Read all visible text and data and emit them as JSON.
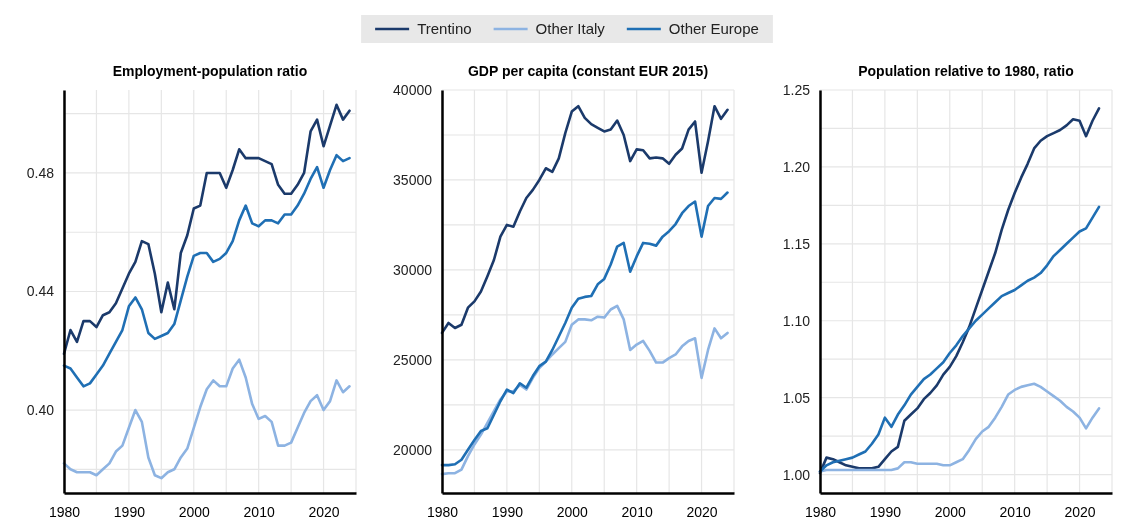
{
  "chart_data": [
    {
      "type": "line",
      "title": "Employment-population ratio",
      "legend": "top",
      "grid": true,
      "x": [
        1980,
        1981,
        1982,
        1983,
        1984,
        1985,
        1986,
        1987,
        1988,
        1989,
        1990,
        1991,
        1992,
        1993,
        1994,
        1995,
        1996,
        1997,
        1998,
        1999,
        2000,
        2001,
        2002,
        2003,
        2004,
        2005,
        2006,
        2007,
        2008,
        2009,
        2010,
        2011,
        2012,
        2013,
        2014,
        2015,
        2016,
        2017,
        2018,
        2019,
        2020,
        2021,
        2022,
        2023,
        2024
      ],
      "xlim": [
        1980,
        2025
      ],
      "xticks": [
        1980,
        {
          "value": 1985,
          "label": null
        },
        1990,
        {
          "value": 1995,
          "label": null
        },
        2000,
        {
          "value": 2005,
          "label": null
        },
        2010,
        {
          "value": 2015,
          "label": null
        },
        2020,
        {
          "value": 2025,
          "label": null
        }
      ],
      "ylim": [
        0.372,
        0.508
      ],
      "yticks": [
        {
          "value": 0.38,
          "label": null
        },
        {
          "value": 0.4,
          "label": "0.40"
        },
        {
          "value": 0.42,
          "label": null
        },
        {
          "value": 0.44,
          "label": "0.44"
        },
        {
          "value": 0.46,
          "label": null
        },
        {
          "value": 0.48,
          "label": "0.48"
        },
        {
          "value": 0.5,
          "label": null
        }
      ],
      "series": [
        {
          "name": "Trentino",
          "color": "#1b3a6b",
          "values": [
            0.419,
            0.427,
            0.423,
            0.43,
            0.43,
            0.428,
            0.432,
            0.433,
            0.436,
            0.441,
            0.446,
            0.45,
            0.457,
            0.456,
            0.446,
            0.433,
            0.443,
            0.434,
            0.453,
            0.459,
            0.468,
            0.469,
            0.48,
            0.48,
            0.48,
            0.475,
            0.481,
            0.488,
            0.485,
            0.485,
            0.485,
            0.484,
            0.483,
            0.476,
            0.473,
            0.473,
            0.476,
            0.48,
            0.494,
            0.498,
            0.489,
            0.496,
            0.503,
            0.498,
            0.501
          ]
        },
        {
          "name": "Other Italy",
          "color": "#8db3e2",
          "values": [
            0.382,
            0.38,
            0.379,
            0.379,
            0.379,
            0.378,
            0.38,
            0.382,
            0.386,
            0.388,
            0.394,
            0.4,
            0.396,
            0.384,
            0.378,
            0.377,
            0.379,
            0.38,
            0.384,
            0.387,
            0.394,
            0.401,
            0.407,
            0.41,
            0.408,
            0.408,
            0.414,
            0.417,
            0.411,
            0.402,
            0.397,
            0.398,
            0.396,
            0.388,
            0.388,
            0.389,
            0.394,
            0.399,
            0.403,
            0.405,
            0.4,
            0.403,
            0.41,
            0.406,
            0.408
          ]
        },
        {
          "name": "Other Europe",
          "color": "#1f6fb4",
          "values": [
            0.415,
            0.414,
            0.411,
            0.408,
            0.409,
            0.412,
            0.415,
            0.419,
            0.423,
            0.427,
            0.435,
            0.438,
            0.434,
            0.426,
            0.424,
            0.425,
            0.426,
            0.429,
            0.437,
            0.445,
            0.452,
            0.453,
            0.453,
            0.45,
            0.451,
            0.453,
            0.457,
            0.464,
            0.469,
            0.463,
            0.462,
            0.464,
            0.464,
            0.463,
            0.466,
            0.466,
            0.469,
            0.473,
            0.478,
            0.482,
            0.475,
            0.481,
            0.486,
            0.484,
            0.485
          ]
        }
      ]
    },
    {
      "type": "line",
      "title": "GDP per capita (constant EUR 2015)",
      "grid": true,
      "x": [
        1980,
        1981,
        1982,
        1983,
        1984,
        1985,
        1986,
        1987,
        1988,
        1989,
        1990,
        1991,
        1992,
        1993,
        1994,
        1995,
        1996,
        1997,
        1998,
        1999,
        2000,
        2001,
        2002,
        2003,
        2004,
        2005,
        2006,
        2007,
        2008,
        2009,
        2010,
        2011,
        2012,
        2013,
        2014,
        2015,
        2016,
        2017,
        2018,
        2019,
        2020,
        2021,
        2022,
        2023,
        2024
      ],
      "xlim": [
        1980,
        2025
      ],
      "xticks": [
        1980,
        {
          "value": 1985,
          "label": null
        },
        1990,
        {
          "value": 1995,
          "label": null
        },
        2000,
        {
          "value": 2005,
          "label": null
        },
        2010,
        {
          "value": 2015,
          "label": null
        },
        2020,
        {
          "value": 2025,
          "label": null
        }
      ],
      "ylim": [
        17600,
        40000
      ],
      "yticks": [
        20000,
        {
          "value": 22500,
          "label": null
        },
        25000,
        {
          "value": 27500,
          "label": null
        },
        30000,
        {
          "value": 32500,
          "label": null
        },
        35000,
        {
          "value": 37500,
          "label": null
        },
        40000
      ],
      "series": [
        {
          "color": "#1b3a6b",
          "values": [
            26500,
            27050,
            26770,
            26950,
            27900,
            28250,
            28800,
            29650,
            30550,
            31850,
            32500,
            32400,
            33250,
            34000,
            34450,
            35000,
            35650,
            35450,
            36200,
            37600,
            38800,
            39100,
            38450,
            38100,
            37900,
            37700,
            37800,
            38300,
            37500,
            36050,
            36700,
            36650,
            36200,
            36250,
            36200,
            35900,
            36400,
            36750,
            37800,
            38250,
            35400,
            37150,
            39100,
            38400,
            38900
          ]
        },
        {
          "color": "#8db3e2",
          "values": [
            18650,
            18700,
            18700,
            18900,
            19650,
            20300,
            20850,
            21500,
            22150,
            22800,
            23250,
            23250,
            23600,
            23350,
            24000,
            24550,
            24900,
            25300,
            25650,
            26000,
            26950,
            27250,
            27250,
            27200,
            27400,
            27350,
            27800,
            28000,
            27250,
            25550,
            25850,
            26050,
            25500,
            24850,
            24850,
            25100,
            25300,
            25750,
            26050,
            26200,
            24000,
            25550,
            26750,
            26200,
            26500
          ]
        },
        {
          "color": "#1f6fb4",
          "values": [
            19150,
            19150,
            19200,
            19450,
            20000,
            20550,
            21050,
            21200,
            21950,
            22700,
            23350,
            23150,
            23700,
            23450,
            24100,
            24650,
            24900,
            25550,
            26300,
            27050,
            27900,
            28400,
            28500,
            28550,
            29200,
            29500,
            30300,
            31300,
            31500,
            29900,
            30750,
            31500,
            31450,
            31350,
            31850,
            32150,
            32550,
            33150,
            33550,
            33800,
            31850,
            33550,
            34000,
            33950,
            34300
          ]
        }
      ]
    },
    {
      "type": "line",
      "title": "Population relative to 1980, ratio",
      "grid": true,
      "x": [
        1980,
        1981,
        1982,
        1983,
        1984,
        1985,
        1986,
        1987,
        1988,
        1989,
        1990,
        1991,
        1992,
        1993,
        1994,
        1995,
        1996,
        1997,
        1998,
        1999,
        2000,
        2001,
        2002,
        2003,
        2004,
        2005,
        2006,
        2007,
        2008,
        2009,
        2010,
        2011,
        2012,
        2013,
        2014,
        2015,
        2016,
        2017,
        2018,
        2019,
        2020,
        2021,
        2022,
        2023
      ],
      "xlim": [
        1980,
        2025
      ],
      "xticks": [
        1980,
        {
          "value": 1985,
          "label": null
        },
        1990,
        {
          "value": 1995,
          "label": null
        },
        2000,
        {
          "value": 2005,
          "label": null
        },
        2010,
        {
          "value": 2015,
          "label": null
        },
        2020,
        {
          "value": 2025,
          "label": null
        }
      ],
      "ylim": [
        0.988,
        1.25
      ],
      "yticks": [
        {
          "value": 1.0,
          "label": "1.00"
        },
        {
          "value": 1.025,
          "label": null
        },
        {
          "value": 1.05,
          "label": "1.05"
        },
        {
          "value": 1.075,
          "label": null
        },
        {
          "value": 1.1,
          "label": "1.10"
        },
        {
          "value": 1.125,
          "label": null
        },
        {
          "value": 1.15,
          "label": "1.15"
        },
        {
          "value": 1.175,
          "label": null
        },
        {
          "value": 1.2,
          "label": "1.20"
        },
        {
          "value": 1.225,
          "label": null
        },
        {
          "value": 1.25,
          "label": "1.25"
        }
      ],
      "series": [
        {
          "color": "#1b3a6b",
          "values": [
            1.001,
            1.011,
            1.01,
            1.008,
            1.006,
            1.005,
            1.004,
            1.004,
            1.004,
            1.005,
            1.01,
            1.015,
            1.018,
            1.035,
            1.039,
            1.043,
            1.049,
            1.053,
            1.058,
            1.065,
            1.07,
            1.077,
            1.086,
            1.096,
            1.108,
            1.12,
            1.132,
            1.144,
            1.159,
            1.172,
            1.183,
            1.193,
            1.202,
            1.212,
            1.217,
            1.22,
            1.222,
            1.224,
            1.227,
            1.231,
            1.23,
            1.22,
            1.23,
            1.238
          ]
        },
        {
          "color": "#8db3e2",
          "values": [
            1.002,
            1.003,
            1.003,
            1.003,
            1.003,
            1.003,
            1.003,
            1.003,
            1.003,
            1.003,
            1.003,
            1.003,
            1.004,
            1.008,
            1.008,
            1.007,
            1.007,
            1.007,
            1.007,
            1.006,
            1.006,
            1.008,
            1.01,
            1.016,
            1.023,
            1.028,
            1.031,
            1.037,
            1.044,
            1.052,
            1.055,
            1.057,
            1.058,
            1.059,
            1.057,
            1.054,
            1.051,
            1.048,
            1.044,
            1.041,
            1.037,
            1.03,
            1.037,
            1.043
          ]
        },
        {
          "color": "#1f6fb4",
          "values": [
            1.002,
            1.006,
            1.008,
            1.009,
            1.01,
            1.011,
            1.013,
            1.015,
            1.02,
            1.026,
            1.037,
            1.031,
            1.039,
            1.045,
            1.052,
            1.057,
            1.062,
            1.065,
            1.069,
            1.073,
            1.079,
            1.084,
            1.09,
            1.095,
            1.1,
            1.104,
            1.108,
            1.112,
            1.116,
            1.118,
            1.12,
            1.123,
            1.126,
            1.128,
            1.131,
            1.136,
            1.142,
            1.146,
            1.15,
            1.154,
            1.158,
            1.16,
            1.167,
            1.174
          ]
        }
      ]
    }
  ]
}
